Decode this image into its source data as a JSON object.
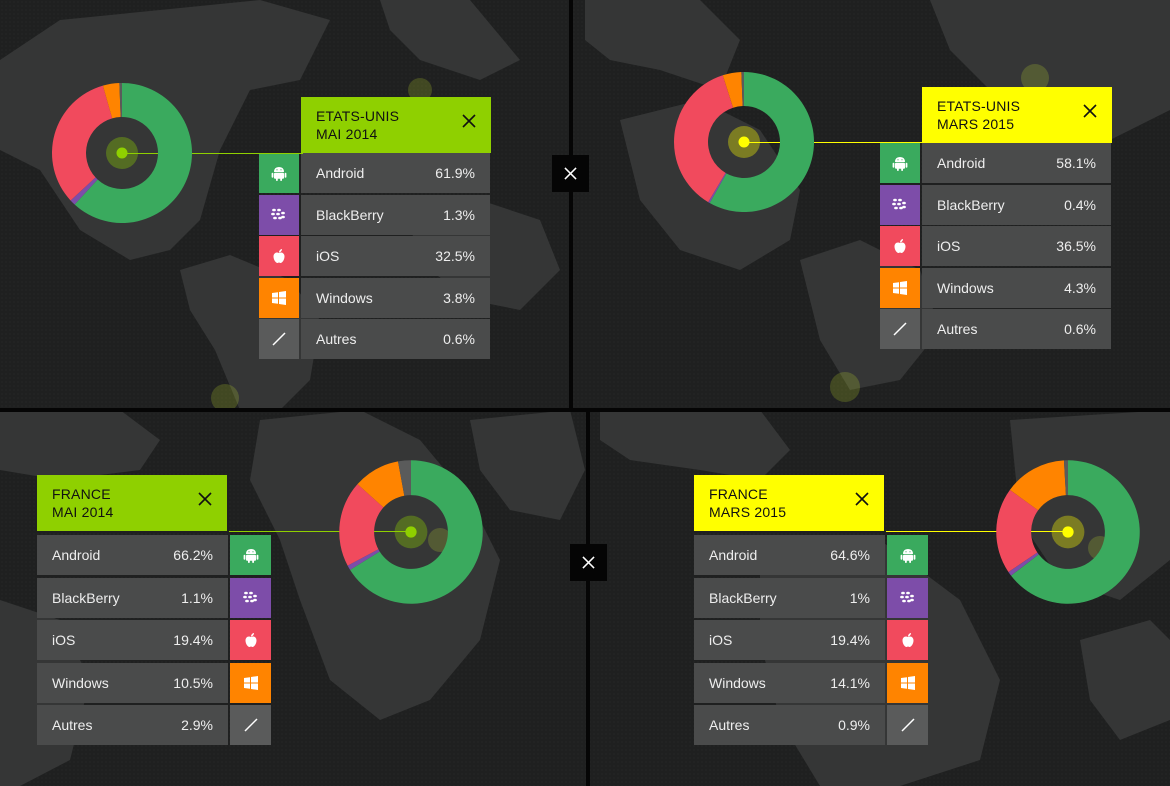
{
  "colors": {
    "Android": "#3aaa5e",
    "BlackBerry": "#7d4da9",
    "iOS": "#f14a5d",
    "Windows": "#ff8400",
    "Autres": "#5a5b5b",
    "header_green": "#8fd000",
    "header_yellow": "#ffff00"
  },
  "icons": {
    "Android": "android-icon",
    "BlackBerry": "blackberry-icon",
    "iOS": "apple-icon",
    "Windows": "windows-icon",
    "Autres": "slash-icon"
  },
  "chart_data": [
    {
      "type": "pie",
      "title": "ETATS-UNIS MAI 2014",
      "title_lines": [
        "ETATS-UNIS",
        "MAI 2014"
      ],
      "accent": "green",
      "categories": [
        "Android",
        "BlackBerry",
        "iOS",
        "Windows",
        "Autres"
      ],
      "values": [
        61.9,
        1.3,
        32.5,
        3.8,
        0.6
      ],
      "value_labels": [
        "61.9%",
        "1.3%",
        "32.5%",
        "3.8%",
        "0.6%"
      ]
    },
    {
      "type": "pie",
      "title": "ETATS-UNIS MARS 2015",
      "title_lines": [
        "ETATS-UNIS",
        "MARS 2015"
      ],
      "accent": "yellow",
      "categories": [
        "Android",
        "BlackBerry",
        "iOS",
        "Windows",
        "Autres"
      ],
      "values": [
        58.1,
        0.4,
        36.5,
        4.3,
        0.6
      ],
      "value_labels": [
        "58.1%",
        "0.4%",
        "36.5%",
        "4.3%",
        "0.6%"
      ]
    },
    {
      "type": "pie",
      "title": "FRANCE MAI 2014",
      "title_lines": [
        "FRANCE",
        "MAI 2014"
      ],
      "accent": "green",
      "categories": [
        "Android",
        "BlackBerry",
        "iOS",
        "Windows",
        "Autres"
      ],
      "values": [
        66.2,
        1.1,
        19.4,
        10.5,
        2.9
      ],
      "value_labels": [
        "66.2%",
        "1.1%",
        "19.4%",
        "10.5%",
        "2.9%"
      ]
    },
    {
      "type": "pie",
      "title": "FRANCE MARS 2015",
      "title_lines": [
        "FRANCE",
        "MARS 2015"
      ],
      "accent": "yellow",
      "categories": [
        "Android",
        "BlackBerry",
        "iOS",
        "Windows",
        "Autres"
      ],
      "values": [
        64.6,
        1,
        19.4,
        14.1,
        0.9
      ],
      "value_labels": [
        "64.6%",
        "1%",
        "19.4%",
        "14.1%",
        "0.9%"
      ]
    }
  ]
}
